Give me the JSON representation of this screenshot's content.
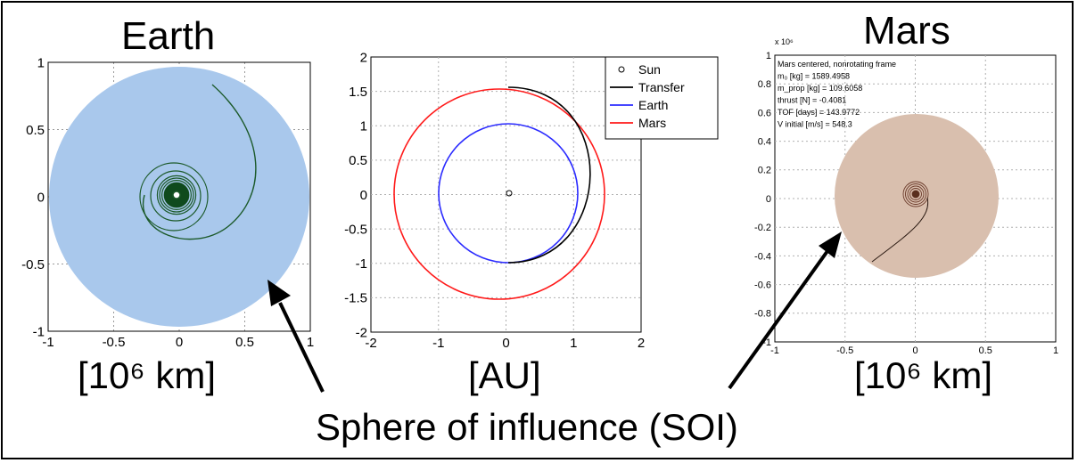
{
  "earth_panel": {
    "title": "Earth",
    "unit_label": "[10⁶ km]",
    "x_ticks": [
      "-1",
      "-0.5",
      "0",
      "0.5",
      "1"
    ],
    "y_ticks": [
      "1",
      "0.5",
      "0",
      "-0.5",
      "-1"
    ],
    "xlim": [
      -1,
      1
    ],
    "ylim": [
      -1,
      1
    ],
    "soi_color": "#a9c8ec",
    "trajectory_color": "#1c5a2a"
  },
  "transfer_panel": {
    "unit_label": "[AU]",
    "x_ticks": [
      "-2",
      "-1",
      "0",
      "1",
      "2"
    ],
    "y_ticks": [
      "2",
      "1.5",
      "1",
      "0.5",
      "0",
      "-0.5",
      "-1",
      "-1.5",
      "-2"
    ],
    "xlim": [
      -2,
      2
    ],
    "ylim": [
      -2,
      2
    ],
    "legend": [
      {
        "label": "Sun",
        "color": "#000000",
        "marker": "circle"
      },
      {
        "label": "Transfer",
        "color": "#000000"
      },
      {
        "label": "Earth",
        "color": "#2b2bff"
      },
      {
        "label": "Mars",
        "color": "#ff1a1a"
      }
    ],
    "earth_orbit_radius_au": 1.0,
    "mars_orbit_radius_au": 1.52
  },
  "mars_panel": {
    "title": "Mars",
    "unit_label": "[10⁶ km]",
    "y_exponent": "x 10⁶",
    "x_ticks": [
      "-1",
      "-0.5",
      "0",
      "0.5",
      "1"
    ],
    "y_ticks": [
      "1",
      "0.8",
      "0.6",
      "0.4",
      "0.2",
      "0",
      "-0.2",
      "-0.4",
      "-0.6",
      "-0.8",
      "-1"
    ],
    "xlim": [
      -1,
      1
    ],
    "ylim": [
      -1,
      1
    ],
    "soi_color": "#d9bfae",
    "info_lines": [
      "Mars centered, nonrotating frame",
      "m₀ [kg]      = 1589.4958",
      "m_prop [kg] = 109.6058",
      "thrust [N]  = -0.4081",
      "TOF [days]  = 143.9772",
      "V initial [m/s] = 548.3"
    ]
  },
  "caption": "Sphere of influence (SOI)"
}
